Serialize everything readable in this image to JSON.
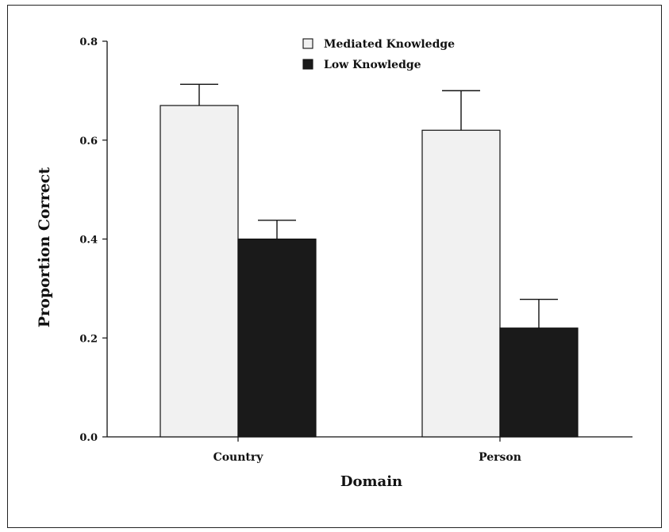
{
  "chart_data": {
    "type": "bar",
    "categories": [
      "Country",
      "Person"
    ],
    "series": [
      {
        "name": "Mediated Knowledge",
        "values": [
          0.67,
          0.62
        ],
        "errors": [
          0.043,
          0.08
        ],
        "color": "#f1f1f1"
      },
      {
        "name": "Low Knowledge",
        "values": [
          0.4,
          0.22
        ],
        "errors": [
          0.038,
          0.058
        ],
        "color": "#1a1a1a"
      }
    ],
    "xlabel": "Domain",
    "ylabel": "Proportion Correct",
    "ylim": [
      0,
      0.8
    ],
    "yticks": [
      "0.0",
      "0.2",
      "0.4",
      "0.6",
      "0.8"
    ],
    "ytick_values": [
      0,
      0.2,
      0.4,
      0.6,
      0.8
    ],
    "legend_position": "top-center",
    "grid": false
  }
}
